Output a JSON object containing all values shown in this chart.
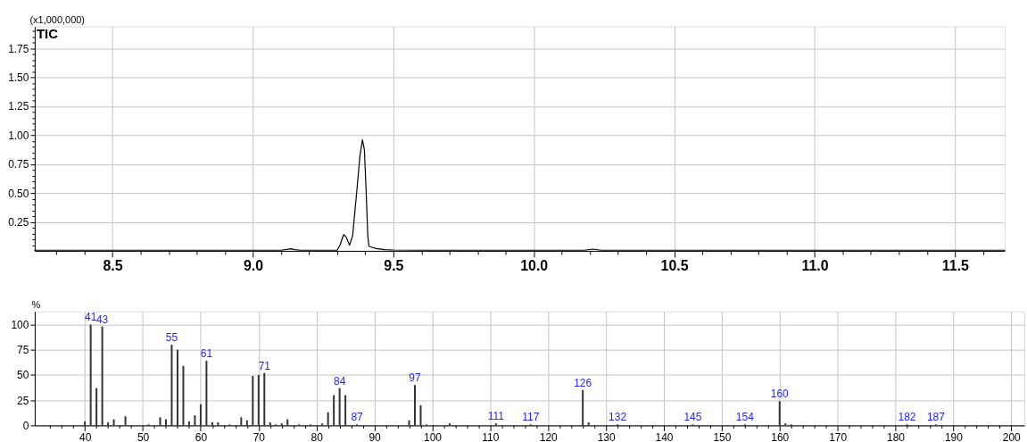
{
  "chart_data": [
    {
      "type": "line",
      "title": "TIC",
      "ylabel": "(x1,000,000)",
      "color": "#000000",
      "marker": "none",
      "line_style": "solid",
      "grid": true,
      "x": [
        8.223,
        9.1,
        9.12,
        9.134,
        9.15,
        9.17,
        9.3,
        9.31,
        9.323,
        9.332,
        9.344,
        9.355,
        9.37,
        9.381,
        9.39,
        9.397,
        9.403,
        9.409,
        9.413,
        9.425,
        9.439,
        9.47,
        9.5,
        9.6,
        10.18,
        10.21,
        10.24,
        11.677
      ],
      "values": [
        0.005,
        0.005,
        0.012,
        0.018,
        0.01,
        0.005,
        0.005,
        0.05,
        0.14,
        0.12,
        0.05,
        0.13,
        0.52,
        0.82,
        0.96,
        0.87,
        0.52,
        0.13,
        0.04,
        0.03,
        0.02,
        0.01,
        0.007,
        0.005,
        0.005,
        0.015,
        0.005,
        0.005
      ],
      "xlim": [
        8.223,
        11.677
      ],
      "ylim": [
        0,
        1.94
      ],
      "xticks": [
        {
          "value": 8.3,
          "label": null
        },
        {
          "value": 8.4,
          "label": null
        },
        8.5,
        {
          "value": 8.6,
          "label": null
        },
        {
          "value": 8.7,
          "label": null
        },
        {
          "value": 8.8,
          "label": null
        },
        {
          "value": 8.9,
          "label": null
        },
        {
          "value": 9,
          "label": "9.0"
        },
        {
          "value": 9.1,
          "label": null
        },
        {
          "value": 9.2,
          "label": null
        },
        {
          "value": 9.3,
          "label": null
        },
        {
          "value": 9.4,
          "label": null
        },
        9.5,
        {
          "value": 9.6,
          "label": null
        },
        {
          "value": 9.7,
          "label": null
        },
        {
          "value": 9.8,
          "label": null
        },
        {
          "value": 9.9,
          "label": null
        },
        {
          "value": 10,
          "label": "10.0"
        },
        {
          "value": 10.1,
          "label": null
        },
        {
          "value": 10.2,
          "label": null
        },
        {
          "value": 10.3,
          "label": null
        },
        {
          "value": 10.4,
          "label": null
        },
        10.5,
        {
          "value": 10.6,
          "label": null
        },
        {
          "value": 10.7,
          "label": null
        },
        {
          "value": 10.8,
          "label": null
        },
        {
          "value": 10.9,
          "label": null
        },
        {
          "value": 11,
          "label": "11.0"
        },
        {
          "value": 11.1,
          "label": null
        },
        {
          "value": 11.2,
          "label": null
        },
        {
          "value": 11.3,
          "label": null
        },
        {
          "value": 11.4,
          "label": null
        },
        11.5,
        {
          "value": 11.6,
          "label": null
        }
      ],
      "yticks": [
        {
          "value": 0.05,
          "label": null
        },
        {
          "value": 0.1,
          "label": null
        },
        {
          "value": 0.15,
          "label": null
        },
        {
          "value": 0.2,
          "label": null
        },
        0.25,
        {
          "value": 0.3,
          "label": null
        },
        {
          "value": 0.35,
          "label": null
        },
        {
          "value": 0.4,
          "label": null
        },
        {
          "value": 0.45,
          "label": null
        },
        {
          "value": 0.5,
          "label": "0.50"
        },
        {
          "value": 0.55,
          "label": null
        },
        {
          "value": 0.6,
          "label": null
        },
        {
          "value": 0.65,
          "label": null
        },
        {
          "value": 0.7,
          "label": null
        },
        0.75,
        {
          "value": 0.8,
          "label": null
        },
        {
          "value": 0.85,
          "label": null
        },
        {
          "value": 0.9,
          "label": null
        },
        {
          "value": 0.95,
          "label": null
        },
        {
          "value": 1,
          "label": "1.00"
        },
        {
          "value": 1.05,
          "label": null
        },
        {
          "value": 1.1,
          "label": null
        },
        {
          "value": 1.15,
          "label": null
        },
        {
          "value": 1.2,
          "label": null
        },
        1.25,
        {
          "value": 1.3,
          "label": null
        },
        {
          "value": 1.35,
          "label": null
        },
        {
          "value": 1.4,
          "label": null
        },
        {
          "value": 1.45,
          "label": null
        },
        {
          "value": 1.5,
          "label": "1.50"
        },
        {
          "value": 1.55,
          "label": null
        },
        {
          "value": 1.6,
          "label": null
        },
        {
          "value": 1.65,
          "label": null
        },
        {
          "value": 1.7,
          "label": null
        },
        1.75,
        {
          "value": 1.8,
          "label": null
        },
        {
          "value": 1.85,
          "label": null
        },
        {
          "value": 1.9,
          "label": null
        }
      ]
    },
    {
      "type": "bar",
      "ylabel": "%",
      "color": "#333333",
      "grid": true,
      "x": [
        40,
        41,
        42,
        43,
        44,
        45,
        47,
        51,
        53,
        54,
        55,
        56,
        57,
        58,
        59,
        60,
        61,
        62,
        63,
        65,
        67,
        68,
        69,
        70,
        71,
        72,
        73,
        74,
        75,
        77,
        79,
        81,
        82,
        83,
        84,
        85,
        87,
        96,
        97,
        98,
        99,
        103,
        111,
        117,
        126,
        127,
        132,
        145,
        154,
        160,
        161,
        162,
        182,
        187
      ],
      "values": [
        4,
        100,
        37,
        98,
        3,
        6,
        9,
        1,
        8,
        6,
        80,
        75,
        59,
        4,
        10,
        21,
        64,
        3,
        3,
        1,
        8,
        5,
        49,
        50,
        52,
        3,
        1,
        2,
        6,
        1,
        1,
        2,
        13,
        30,
        37,
        30,
        1,
        5,
        40,
        20,
        1,
        2,
        2,
        1,
        35,
        3,
        1,
        1,
        1,
        24,
        2,
        1,
        1,
        1
      ],
      "annotations": [
        {
          "text": "41",
          "x": 41,
          "y": 100
        },
        {
          "text": "43",
          "x": 43,
          "y": 98
        },
        {
          "text": "55",
          "x": 55,
          "y": 80
        },
        {
          "text": "61",
          "x": 61,
          "y": 64
        },
        {
          "text": "71",
          "x": 71,
          "y": 52
        },
        {
          "text": "84",
          "x": 84,
          "y": 37
        },
        {
          "text": "87",
          "x": 87,
          "y": 1
        },
        {
          "text": "97",
          "x": 97,
          "y": 40
        },
        {
          "text": "111",
          "x": 111,
          "y": 2
        },
        {
          "text": "117",
          "x": 117,
          "y": 1
        },
        {
          "text": "126",
          "x": 126,
          "y": 35
        },
        {
          "text": "132",
          "x": 132,
          "y": 1
        },
        {
          "text": "145",
          "x": 145,
          "y": 1
        },
        {
          "text": "154",
          "x": 154,
          "y": 1
        },
        {
          "text": "160",
          "x": 160,
          "y": 24
        },
        {
          "text": "182",
          "x": 182,
          "y": 1
        },
        {
          "text": "187",
          "x": 187,
          "y": 1
        }
      ],
      "xlim": [
        32.1,
        201.5
      ],
      "ylim": [
        0,
        113
      ],
      "xticks": [
        {
          "value": 34,
          "label": null
        },
        {
          "value": 36,
          "label": null
        },
        {
          "value": 38,
          "label": null
        },
        40,
        {
          "value": 42,
          "label": null
        },
        {
          "value": 44,
          "label": null
        },
        {
          "value": 46,
          "label": null
        },
        {
          "value": 48,
          "label": null
        },
        50,
        {
          "value": 52,
          "label": null
        },
        {
          "value": 54,
          "label": null
        },
        {
          "value": 56,
          "label": null
        },
        {
          "value": 58,
          "label": null
        },
        60,
        {
          "value": 62,
          "label": null
        },
        {
          "value": 64,
          "label": null
        },
        {
          "value": 66,
          "label": null
        },
        {
          "value": 68,
          "label": null
        },
        70,
        {
          "value": 72,
          "label": null
        },
        {
          "value": 74,
          "label": null
        },
        {
          "value": 76,
          "label": null
        },
        {
          "value": 78,
          "label": null
        },
        80,
        {
          "value": 82,
          "label": null
        },
        {
          "value": 84,
          "label": null
        },
        {
          "value": 86,
          "label": null
        },
        {
          "value": 88,
          "label": null
        },
        90,
        {
          "value": 92,
          "label": null
        },
        {
          "value": 94,
          "label": null
        },
        {
          "value": 96,
          "label": null
        },
        {
          "value": 98,
          "label": null
        },
        100,
        {
          "value": 102,
          "label": null
        },
        {
          "value": 104,
          "label": null
        },
        {
          "value": 106,
          "label": null
        },
        {
          "value": 108,
          "label": null
        },
        110,
        {
          "value": 112,
          "label": null
        },
        {
          "value": 114,
          "label": null
        },
        {
          "value": 116,
          "label": null
        },
        {
          "value": 118,
          "label": null
        },
        120,
        {
          "value": 122,
          "label": null
        },
        {
          "value": 124,
          "label": null
        },
        {
          "value": 126,
          "label": null
        },
        {
          "value": 128,
          "label": null
        },
        130,
        {
          "value": 132,
          "label": null
        },
        {
          "value": 134,
          "label": null
        },
        {
          "value": 136,
          "label": null
        },
        {
          "value": 138,
          "label": null
        },
        140,
        {
          "value": 142,
          "label": null
        },
        {
          "value": 144,
          "label": null
        },
        {
          "value": 146,
          "label": null
        },
        {
          "value": 148,
          "label": null
        },
        150,
        {
          "value": 152,
          "label": null
        },
        {
          "value": 154,
          "label": null
        },
        {
          "value": 156,
          "label": null
        },
        {
          "value": 158,
          "label": null
        },
        160,
        {
          "value": 162,
          "label": null
        },
        {
          "value": 164,
          "label": null
        },
        {
          "value": 166,
          "label": null
        },
        {
          "value": 168,
          "label": null
        },
        170,
        {
          "value": 172,
          "label": null
        },
        {
          "value": 174,
          "label": null
        },
        {
          "value": 176,
          "label": null
        },
        {
          "value": 178,
          "label": null
        },
        180,
        {
          "value": 182,
          "label": null
        },
        {
          "value": 184,
          "label": null
        },
        {
          "value": 186,
          "label": null
        },
        {
          "value": 188,
          "label": null
        },
        190,
        {
          "value": 192,
          "label": null
        },
        {
          "value": 194,
          "label": null
        },
        {
          "value": 196,
          "label": null
        },
        {
          "value": 198,
          "label": null
        },
        200
      ],
      "yticks": [
        0,
        25,
        50,
        75,
        100
      ]
    }
  ]
}
